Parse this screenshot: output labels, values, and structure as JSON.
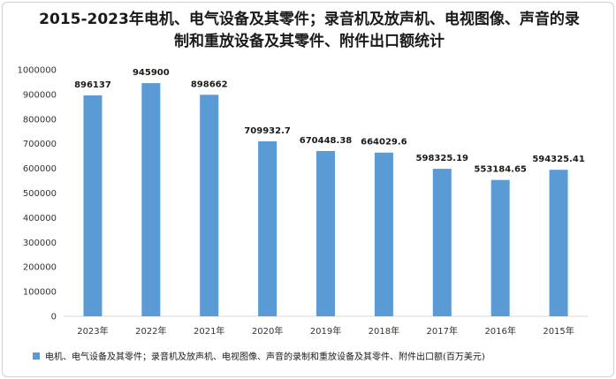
{
  "chart_data": {
    "type": "bar",
    "title": "2015-2023年电机、电气设备及其零件；录音机及放声机、电视图像、声音的录制和重放设备及其零件、附件出口额统计",
    "categories": [
      "2023年",
      "2022年",
      "2021年",
      "2020年",
      "2019年",
      "2018年",
      "2017年",
      "2016年",
      "2015年"
    ],
    "series": [
      {
        "name": "电机、电气设备及其零件；录音机及放声机、电视图像、声音的录制和重放设备及其零件、附件出口额(百万美元)",
        "values": [
          896137,
          945900,
          898662,
          709932.7,
          670448.38,
          664029.6,
          598325.19,
          553184.65,
          594325.41
        ],
        "labels": [
          "896137",
          "945900",
          "898662",
          "709932.7",
          "670448.38",
          "664029.6",
          "598325.19",
          "553184.65",
          "594325.41"
        ],
        "color": "#5b9bd5"
      }
    ],
    "ylim": [
      0,
      1000000
    ],
    "yticks": [
      "0",
      "100000",
      "200000",
      "300000",
      "400000",
      "500000",
      "600000",
      "700000",
      "800000",
      "900000",
      "1000000"
    ],
    "xlabel": "",
    "ylabel": "",
    "grid": false,
    "legend_position": "bottom"
  }
}
